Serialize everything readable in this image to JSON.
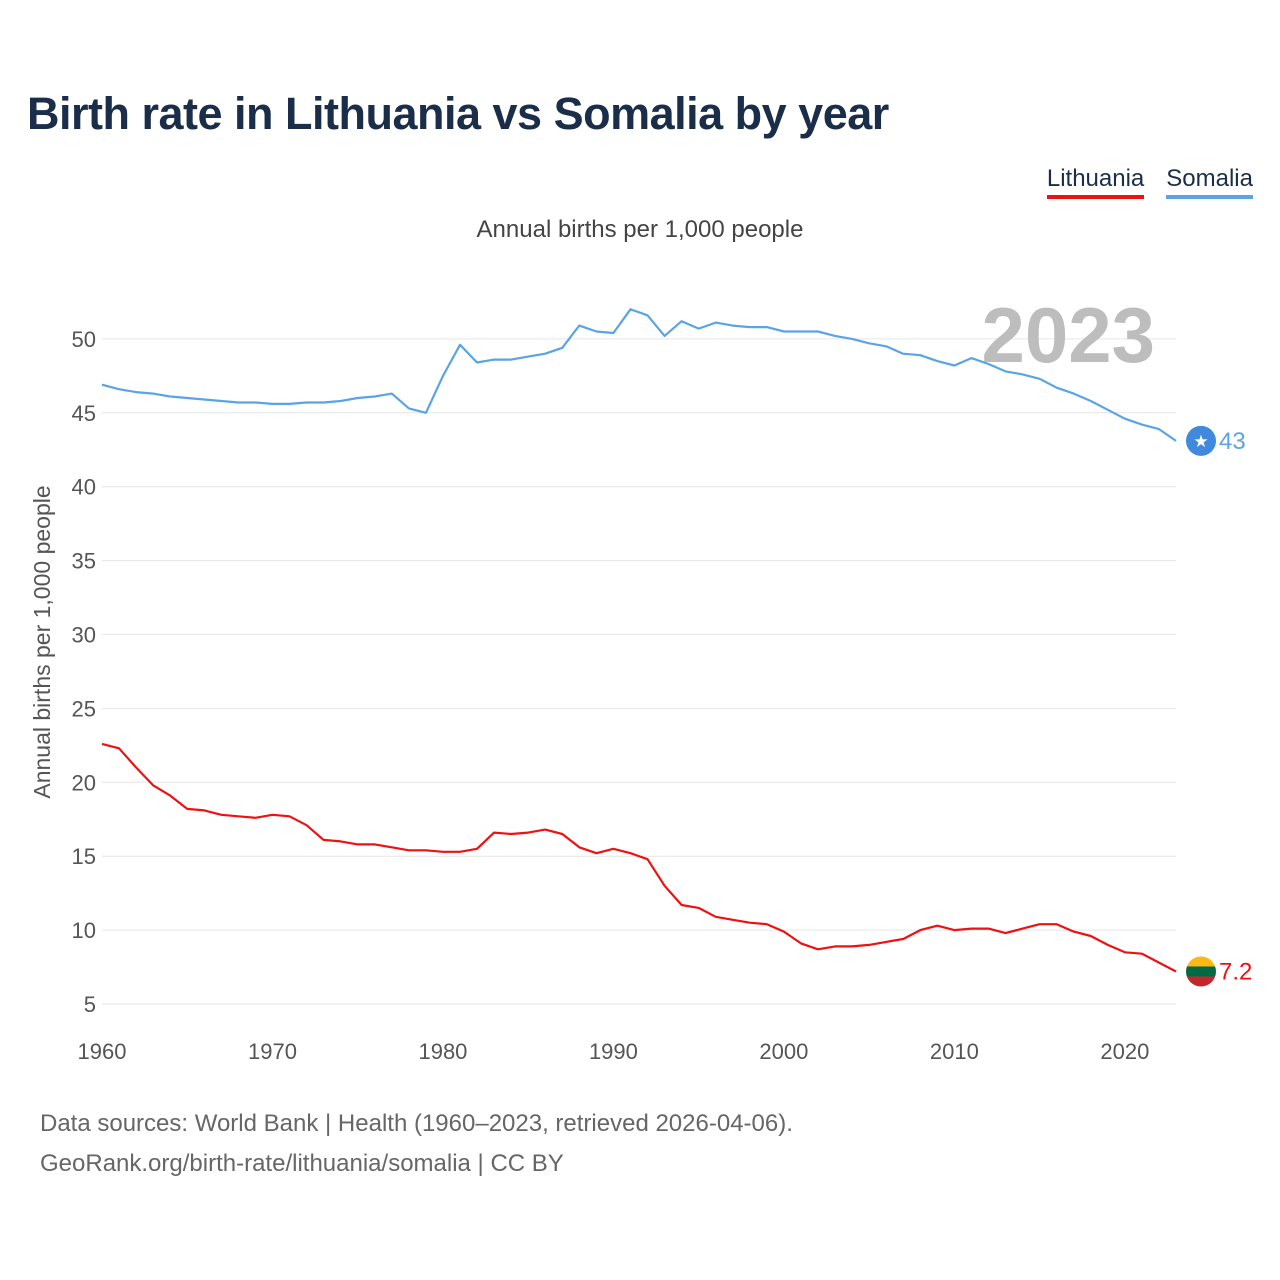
{
  "page": {
    "title": "Birth rate in Lithuania vs Somalia by year",
    "subtitle": "Annual births per 1,000 people",
    "year_overlay": "2023",
    "footer_line1": "Data sources: World Bank | Health (1960–2023, retrieved 2026-04-06).",
    "footer_line2": "GeoRank.org/birth-rate/lithuania/somalia | CC BY"
  },
  "legend": [
    {
      "label": "Lithuania",
      "color": "#ee1111"
    },
    {
      "label": "Somalia",
      "color": "#5aa4e6"
    }
  ],
  "chart_data": {
    "type": "line",
    "title": "Birth rate in Lithuania vs Somalia by year",
    "xlabel": "",
    "ylabel": "Annual births per 1,000 people",
    "xlim": [
      1960,
      2023
    ],
    "ylim": [
      5,
      53
    ],
    "x_ticks": [
      1960,
      1970,
      1980,
      1990,
      2000,
      2010,
      2020
    ],
    "y_ticks": [
      5,
      10,
      15,
      20,
      25,
      30,
      35,
      40,
      45,
      50
    ],
    "grid": true,
    "x": [
      1960,
      1961,
      1962,
      1963,
      1964,
      1965,
      1966,
      1967,
      1968,
      1969,
      1970,
      1971,
      1972,
      1973,
      1974,
      1975,
      1976,
      1977,
      1978,
      1979,
      1980,
      1981,
      1982,
      1983,
      1984,
      1985,
      1986,
      1987,
      1988,
      1989,
      1990,
      1991,
      1992,
      1993,
      1994,
      1995,
      1996,
      1997,
      1998,
      1999,
      2000,
      2001,
      2002,
      2003,
      2004,
      2005,
      2006,
      2007,
      2008,
      2009,
      2010,
      2011,
      2012,
      2013,
      2014,
      2015,
      2016,
      2017,
      2018,
      2019,
      2020,
      2021,
      2022,
      2023
    ],
    "series": [
      {
        "name": "Lithuania",
        "color": "#ee1111",
        "end_label": "7.2",
        "values": [
          22.6,
          22.3,
          21.0,
          19.8,
          19.1,
          18.2,
          18.1,
          17.8,
          17.7,
          17.6,
          17.8,
          17.7,
          17.1,
          16.1,
          16.0,
          15.8,
          15.8,
          15.6,
          15.4,
          15.4,
          15.3,
          15.3,
          15.5,
          16.6,
          16.5,
          16.6,
          16.8,
          16.5,
          15.6,
          15.2,
          15.5,
          15.2,
          14.8,
          13.0,
          11.7,
          11.5,
          10.9,
          10.7,
          10.5,
          10.4,
          9.9,
          9.1,
          8.7,
          8.9,
          8.9,
          9.0,
          9.2,
          9.4,
          10.0,
          10.3,
          10.0,
          10.1,
          10.1,
          9.8,
          10.1,
          10.4,
          10.4,
          9.9,
          9.6,
          9.0,
          8.5,
          8.4,
          7.8,
          7.2
        ]
      },
      {
        "name": "Somalia",
        "color": "#5aa4e6",
        "end_label": "43",
        "values": [
          46.9,
          46.6,
          46.4,
          46.3,
          46.1,
          46.0,
          45.9,
          45.8,
          45.7,
          45.7,
          45.6,
          45.6,
          45.7,
          45.7,
          45.8,
          46.0,
          46.1,
          46.3,
          45.3,
          45.0,
          47.5,
          49.6,
          48.4,
          48.6,
          48.6,
          48.8,
          49.0,
          49.4,
          50.9,
          50.5,
          50.4,
          52.0,
          51.6,
          50.2,
          51.2,
          50.7,
          51.1,
          50.9,
          50.8,
          50.8,
          50.5,
          50.5,
          50.5,
          50.2,
          50.0,
          49.7,
          49.5,
          49.0,
          48.9,
          48.5,
          48.2,
          48.7,
          48.3,
          47.8,
          47.6,
          47.3,
          46.7,
          46.3,
          45.8,
          45.2,
          44.6,
          44.2,
          43.9,
          43.1
        ]
      }
    ]
  }
}
